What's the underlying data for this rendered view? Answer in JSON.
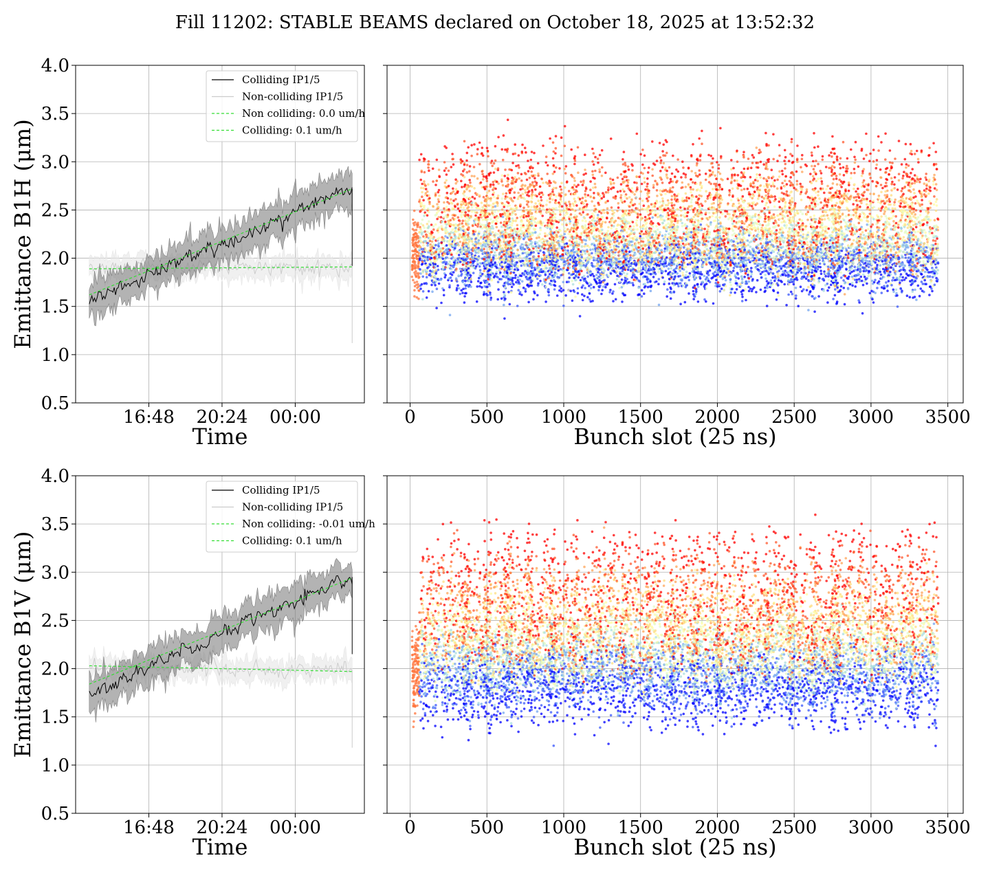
{
  "figure": {
    "title": "Fill 11202: STABLE BEAMS declared on October 18, 2025 at 13:52:32"
  },
  "colors": {
    "colliding": "#000000",
    "colliding_band": "#808080",
    "noncolliding": "#cccccc",
    "noncolliding_band": "#e6e6e6",
    "fit": "#33dd33",
    "grid": "#b0b0b0",
    "scatter_colormap": "rainbow"
  },
  "chart_data": [
    {
      "id": "b1h_time",
      "type": "line",
      "xlabel": "Time",
      "ylabel": "Emittance B1H (μm)",
      "ylim": [
        0.5,
        4.0
      ],
      "yticks": [
        "0.5",
        "1.0",
        "1.5",
        "2.0",
        "2.5",
        "3.0",
        "3.5",
        "4.0"
      ],
      "xlim_hours": [
        13.2,
        27.4
      ],
      "xticks": [
        {
          "label": "16:48",
          "h": 16.8
        },
        {
          "label": "20:24",
          "h": 20.4
        },
        {
          "label": "00:00",
          "h": 24.0
        }
      ],
      "x_range_hours": [
        13.87,
        26.8
      ],
      "legend_position": "upper right",
      "grid": true,
      "series": [
        {
          "name": "Colliding IP1/5",
          "kind": "measured",
          "start": 1.55,
          "end": 2.72,
          "band": 0.13
        },
        {
          "name": "Non-colliding IP1/5",
          "kind": "measured",
          "start": 1.9,
          "end": 1.92,
          "band": 0.08
        },
        {
          "name": "Non colliding: 0.0 um/h",
          "kind": "fit",
          "start": 1.89,
          "end": 1.91
        },
        {
          "name": "Colliding: 0.1 um/h",
          "kind": "fit",
          "start": 1.62,
          "end": 2.72
        }
      ]
    },
    {
      "id": "b1h_bunch",
      "type": "scatter",
      "xlabel": "Bunch slot (25 ns)",
      "ylim": [
        0.5,
        4.0
      ],
      "xlim": [
        -150,
        3600
      ],
      "xticks": [
        "0",
        "500",
        "1000",
        "1500",
        "2000",
        "2500",
        "3000",
        "3500"
      ],
      "grid": true,
      "colormap": "rainbow",
      "trains_start": [
        12,
        60,
        200,
        340,
        480,
        610,
        760,
        900,
        1060,
        1220,
        1380,
        1540,
        1690,
        1840,
        1990,
        2150,
        2310,
        2460,
        2610,
        2740,
        2920,
        3090,
        3250
      ],
      "train_length": 185,
      "start_emittance": {
        "low": 1.7,
        "high": 2.0
      },
      "end_emittance": {
        "low": 1.42,
        "high": 2.6
      }
    },
    {
      "id": "b1v_time",
      "type": "line",
      "xlabel": "Time",
      "ylabel": "Emittance B1V (μm)",
      "ylim": [
        0.5,
        4.0
      ],
      "yticks": [
        "0.5",
        "1.0",
        "1.5",
        "2.0",
        "2.5",
        "3.0",
        "3.5",
        "4.0"
      ],
      "xlim_hours": [
        13.2,
        27.4
      ],
      "xticks": [
        {
          "label": "16:48",
          "h": 16.8
        },
        {
          "label": "20:24",
          "h": 20.4
        },
        {
          "label": "00:00",
          "h": 24.0
        }
      ],
      "x_range_hours": [
        13.87,
        26.8
      ],
      "legend_position": "upper right",
      "grid": true,
      "series": [
        {
          "name": "Colliding IP1/5",
          "kind": "measured",
          "start": 1.75,
          "end": 2.95,
          "band": 0.13
        },
        {
          "name": "Non-colliding IP1/5",
          "kind": "measured",
          "start": 2.03,
          "end": 1.98,
          "band": 0.08
        },
        {
          "name": "Non colliding: -0.01 um/h",
          "kind": "fit",
          "start": 2.03,
          "end": 1.97
        },
        {
          "name": "Colliding: 0.1 um/h",
          "kind": "fit",
          "start": 1.84,
          "end": 2.94
        }
      ]
    },
    {
      "id": "b1v_bunch",
      "type": "scatter",
      "xlabel": "Bunch slot (25 ns)",
      "ylim": [
        0.5,
        4.0
      ],
      "xlim": [
        -150,
        3600
      ],
      "xticks": [
        "0",
        "500",
        "1000",
        "1500",
        "2000",
        "2500",
        "3000",
        "3500"
      ],
      "grid": true,
      "colormap": "rainbow",
      "trains_start": [
        12,
        60,
        200,
        340,
        480,
        610,
        760,
        900,
        1060,
        1220,
        1380,
        1540,
        1690,
        1840,
        1990,
        2150,
        2310,
        2460,
        2610,
        2740,
        2920,
        3090,
        3250
      ],
      "train_length": 185,
      "start_emittance": {
        "low": 1.5,
        "high": 2.0
      },
      "end_emittance": {
        "low": 1.55,
        "high": 2.85
      }
    }
  ]
}
